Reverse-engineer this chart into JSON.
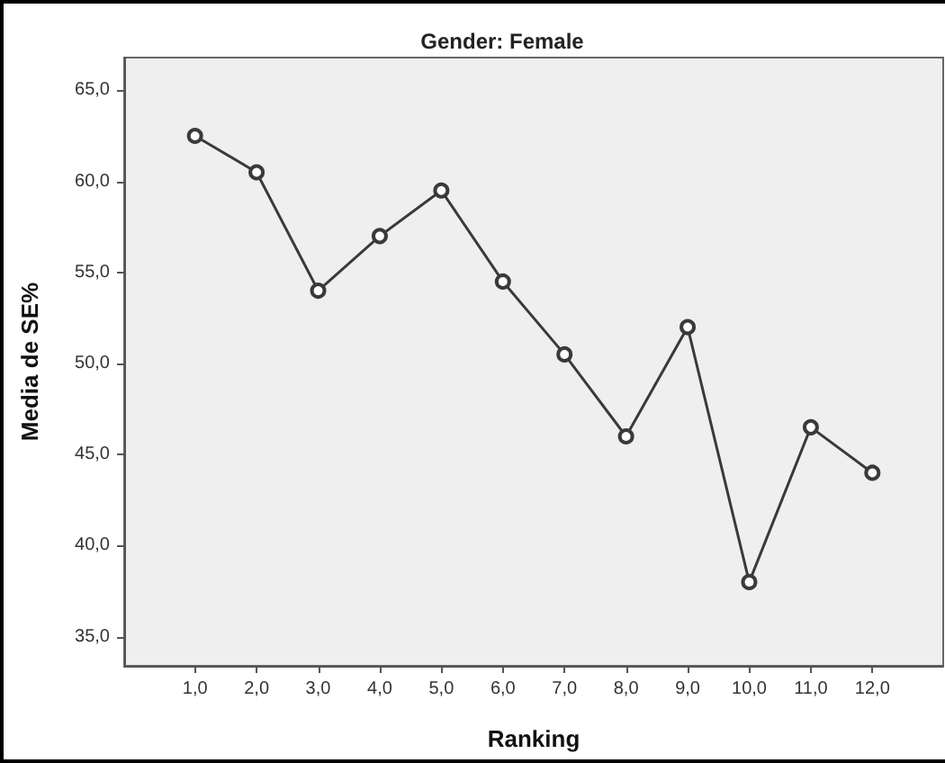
{
  "chart_data": {
    "type": "line",
    "title": "Gender: Female",
    "xlabel": "Ranking",
    "ylabel": "Media de SE%",
    "x": [
      1,
      2,
      3,
      4,
      5,
      6,
      7,
      8,
      9,
      10,
      11,
      12
    ],
    "series": [
      {
        "color": "#3a3a3a",
        "values": [
          62.5,
          60.5,
          54,
          57,
          59.5,
          54.5,
          50.5,
          46,
          52,
          38,
          46.5,
          44
        ]
      }
    ],
    "xlim": [
      -0.15,
      13.15
    ],
    "ylim": [
      33.4,
      66.8
    ],
    "xticks": [
      {
        "value": 1,
        "label": "1,0"
      },
      {
        "value": 2,
        "label": "2,0"
      },
      {
        "value": 3,
        "label": "3,0"
      },
      {
        "value": 4,
        "label": "4,0"
      },
      {
        "value": 5,
        "label": "5,0"
      },
      {
        "value": 6,
        "label": "6,0"
      },
      {
        "value": 7,
        "label": "7,0"
      },
      {
        "value": 8,
        "label": "8,0"
      },
      {
        "value": 9,
        "label": "9,0"
      },
      {
        "value": 10,
        "label": "10,0"
      },
      {
        "value": 11,
        "label": "11,0"
      },
      {
        "value": 12,
        "label": "12,0"
      }
    ],
    "yticks": [
      {
        "value": 35,
        "label": "35,0"
      },
      {
        "value": 40,
        "label": "40,0"
      },
      {
        "value": 45,
        "label": "45,0"
      },
      {
        "value": 50,
        "label": "50,0"
      },
      {
        "value": 55,
        "label": "55,0"
      },
      {
        "value": 60,
        "label": "60,0"
      },
      {
        "value": 65,
        "label": "65,0"
      }
    ],
    "grid": false,
    "marker": "circle",
    "line_style": "solid"
  }
}
